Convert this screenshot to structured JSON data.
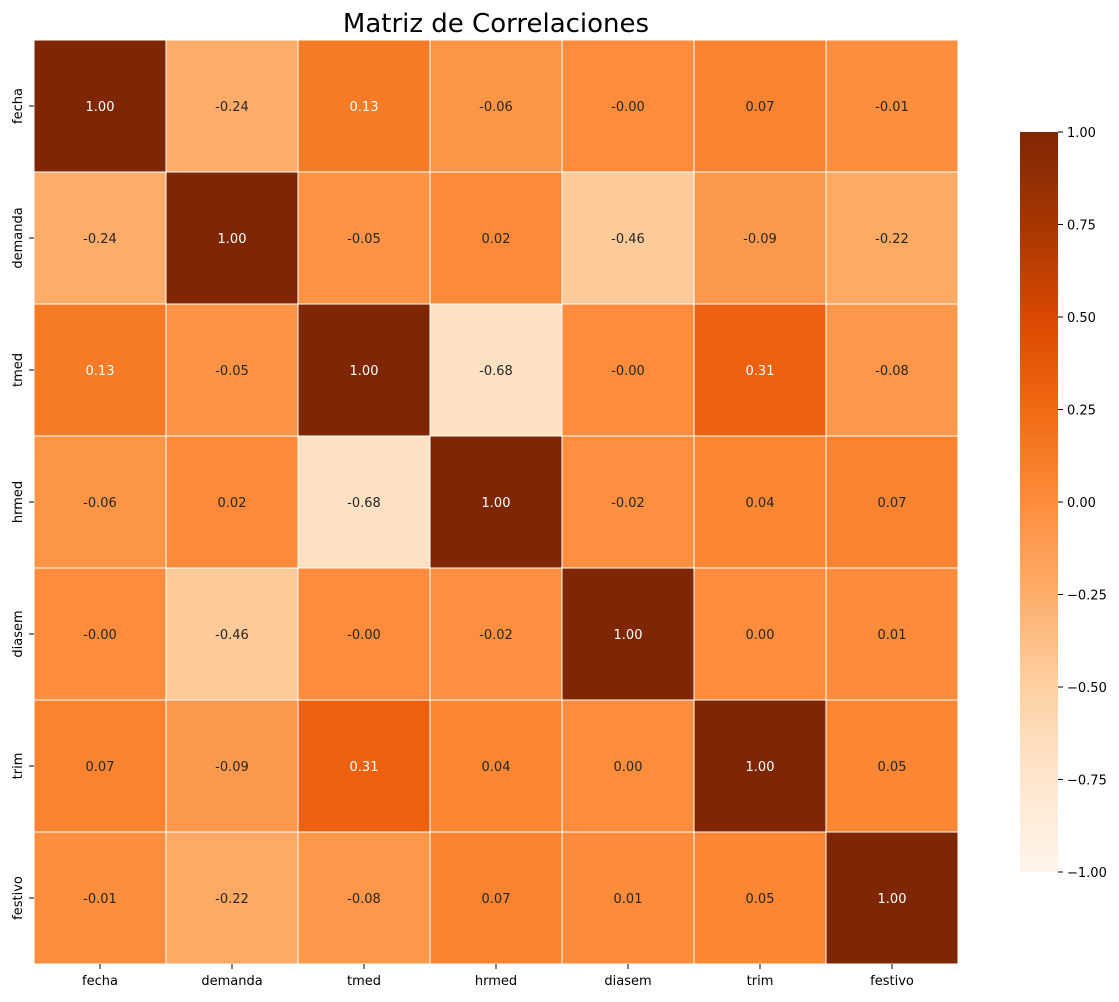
{
  "chart_data": {
    "type": "heatmap",
    "title": "Matriz de Correlaciones",
    "xlabel": "",
    "ylabel": "",
    "x_labels": [
      "fecha",
      "demanda",
      "tmed",
      "hrmed",
      "diasem",
      "trim",
      "festivo"
    ],
    "y_labels": [
      "fecha",
      "demanda",
      "tmed",
      "hrmed",
      "diasem",
      "trim",
      "festivo"
    ],
    "values": [
      [
        1.0,
        -0.24,
        0.13,
        -0.06,
        -0.0,
        0.07,
        -0.01
      ],
      [
        -0.24,
        1.0,
        -0.05,
        0.02,
        -0.46,
        -0.09,
        -0.22
      ],
      [
        0.13,
        -0.05,
        1.0,
        -0.68,
        -0.0,
        0.31,
        -0.08
      ],
      [
        -0.06,
        0.02,
        -0.68,
        1.0,
        -0.02,
        0.04,
        0.07
      ],
      [
        -0.0,
        -0.46,
        -0.0,
        -0.02,
        1.0,
        0.0,
        0.01
      ],
      [
        0.07,
        -0.09,
        0.31,
        0.04,
        0.0,
        1.0,
        0.05
      ],
      [
        -0.01,
        -0.22,
        -0.08,
        0.07,
        0.01,
        0.05,
        1.0
      ]
    ],
    "value_labels": [
      [
        "1.00",
        "-0.24",
        "0.13",
        "-0.06",
        "-0.00",
        "0.07",
        "-0.01"
      ],
      [
        "-0.24",
        "1.00",
        "-0.05",
        "0.02",
        "-0.46",
        "-0.09",
        "-0.22"
      ],
      [
        "0.13",
        "-0.05",
        "1.00",
        "-0.68",
        "-0.00",
        "0.31",
        "-0.08"
      ],
      [
        "-0.06",
        "0.02",
        "-0.68",
        "1.00",
        "-0.02",
        "0.04",
        "0.07"
      ],
      [
        "-0.00",
        "-0.46",
        "-0.00",
        "-0.02",
        "1.00",
        "0.00",
        "0.01"
      ],
      [
        "0.07",
        "-0.09",
        "0.31",
        "0.04",
        "0.00",
        "1.00",
        "0.05"
      ],
      [
        "-0.01",
        "-0.22",
        "-0.08",
        "0.07",
        "0.01",
        "0.05",
        "1.00"
      ]
    ],
    "colormap": "Oranges",
    "vmin": -1.0,
    "vmax": 1.0,
    "colorbar_ticks": [
      "1.00",
      "0.75",
      "0.50",
      "0.25",
      "0.00",
      "−0.25",
      "−0.50",
      "−0.75",
      "−1.00"
    ],
    "colorbar_tick_values": [
      1.0,
      0.75,
      0.5,
      0.25,
      0.0,
      -0.25,
      -0.5,
      -0.75,
      -1.0
    ],
    "cell_border_color": "#ffffff",
    "text_color_dark": "#262626",
    "text_color_light": "#ffffff",
    "grid": false
  }
}
